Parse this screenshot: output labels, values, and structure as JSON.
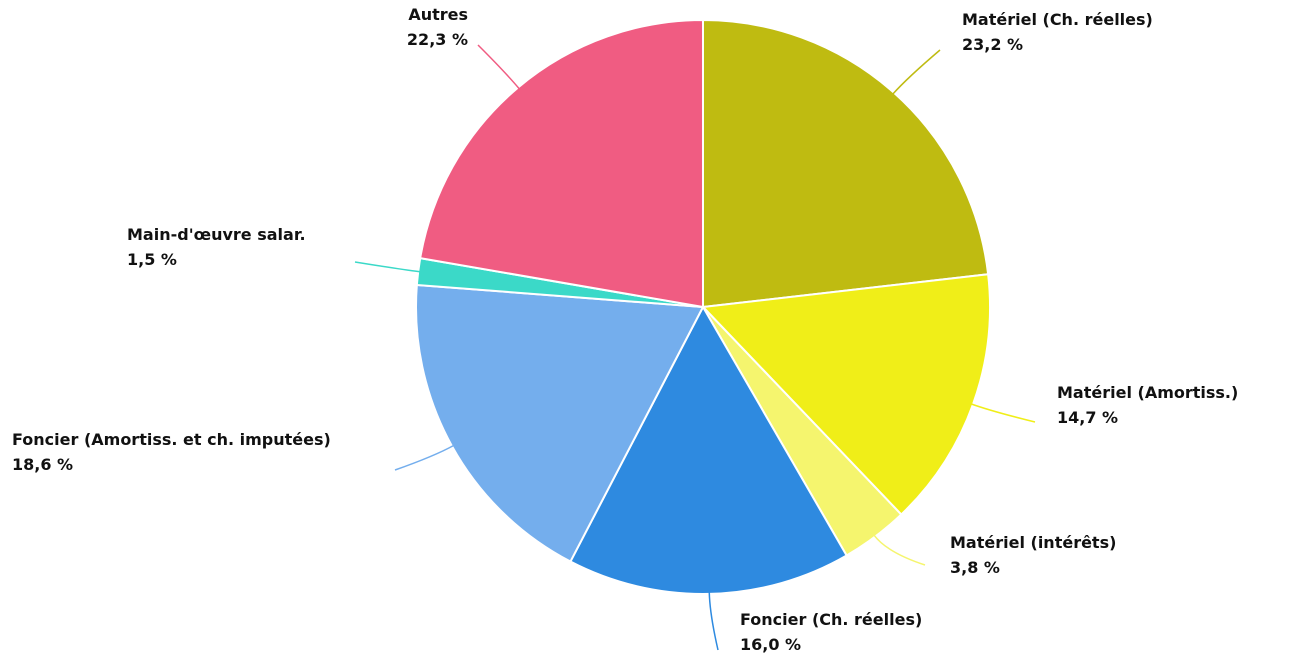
{
  "chart_data": {
    "type": "pie",
    "categories": [
      "Matériel (Ch. réelles)",
      "Matériel (Amortiss.)",
      "Matériel (intérêts)",
      "Foncier (Ch. réelles)",
      "Foncier (Amortiss. et ch. imputées)",
      "Main-d'œuvre salar.",
      "Autres"
    ],
    "values": [
      23.2,
      14.7,
      3.8,
      16.0,
      18.6,
      1.5,
      22.3
    ],
    "value_labels": [
      "23,2 %",
      "14,7 %",
      "3,8 %",
      "16,0 %",
      "18,6 %",
      "1,5 %",
      "22,3 %"
    ],
    "colors": [
      "#bfbb11",
      "#f0ee18",
      "#f5f56e",
      "#2e8ae0",
      "#74aeed",
      "#3bd9c8",
      "#f05c82"
    ]
  }
}
